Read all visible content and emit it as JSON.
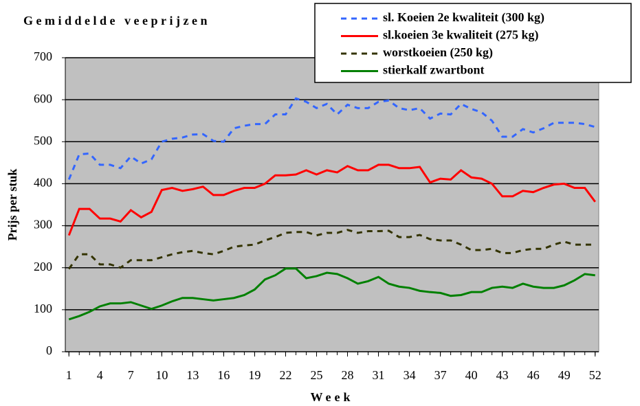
{
  "chart_data": {
    "type": "line",
    "title": "Gemiddelde veeprijzen",
    "x_label": "Week",
    "y_label": "Prijs per stuk",
    "x": [
      1,
      2,
      3,
      4,
      5,
      6,
      7,
      8,
      9,
      10,
      11,
      12,
      13,
      14,
      15,
      16,
      17,
      18,
      19,
      20,
      21,
      22,
      23,
      24,
      25,
      26,
      27,
      28,
      29,
      30,
      31,
      32,
      33,
      34,
      35,
      36,
      37,
      38,
      39,
      40,
      41,
      42,
      43,
      44,
      45,
      46,
      47,
      48,
      49,
      50,
      51,
      52
    ],
    "xlim": [
      0.65,
      52.35
    ],
    "xticks": [
      1,
      4,
      7,
      10,
      13,
      16,
      19,
      22,
      25,
      28,
      31,
      34,
      37,
      40,
      43,
      46,
      49,
      52
    ],
    "ylim": [
      0,
      700
    ],
    "yticks": [
      0,
      100,
      200,
      300,
      400,
      500,
      600,
      700
    ],
    "grid": true,
    "series": [
      {
        "name": "sl. Koeien 2e kwaliteit (300 kg)",
        "color": "#3366ff",
        "dashed": true,
        "values": [
          410,
          470,
          472,
          445,
          445,
          437,
          465,
          448,
          458,
          500,
          507,
          510,
          517,
          518,
          502,
          500,
          532,
          538,
          542,
          542,
          565,
          565,
          603,
          595,
          580,
          590,
          565,
          588,
          580,
          580,
          595,
          598,
          580,
          575,
          580,
          555,
          567,
          565,
          590,
          578,
          570,
          550,
          512,
          512,
          530,
          522,
          532,
          545,
          545,
          545,
          542,
          535
        ]
      },
      {
        "name": "sl.koeien 3e kwaliteit (275 kg)",
        "color": "#ff0000",
        "dashed": false,
        "values": [
          277,
          340,
          340,
          317,
          317,
          310,
          337,
          320,
          333,
          385,
          390,
          383,
          387,
          393,
          373,
          373,
          383,
          390,
          390,
          400,
          420,
          420,
          422,
          432,
          422,
          432,
          427,
          442,
          432,
          432,
          445,
          445,
          437,
          437,
          440,
          403,
          412,
          410,
          432,
          415,
          412,
          400,
          370,
          370,
          383,
          380,
          390,
          398,
          400,
          390,
          390,
          357
        ]
      },
      {
        "name": "worstkoeien (250 kg)",
        "color": "#333300",
        "dashed": true,
        "values": [
          197,
          232,
          232,
          208,
          208,
          200,
          218,
          218,
          218,
          225,
          232,
          237,
          240,
          235,
          232,
          240,
          250,
          253,
          255,
          265,
          273,
          283,
          285,
          285,
          277,
          283,
          283,
          290,
          283,
          287,
          287,
          288,
          273,
          273,
          278,
          268,
          265,
          265,
          255,
          242,
          242,
          245,
          235,
          235,
          242,
          245,
          245,
          255,
          262,
          255,
          255,
          255
        ]
      },
      {
        "name": "stierkalf zwartbont",
        "color": "#008000",
        "dashed": false,
        "values": [
          77,
          85,
          95,
          108,
          115,
          115,
          118,
          110,
          102,
          110,
          120,
          128,
          128,
          125,
          122,
          125,
          128,
          135,
          148,
          172,
          182,
          198,
          198,
          175,
          180,
          188,
          185,
          175,
          162,
          168,
          178,
          162,
          155,
          152,
          145,
          142,
          140,
          133,
          135,
          142,
          142,
          152,
          155,
          152,
          162,
          155,
          152,
          152,
          158,
          170,
          185,
          182
        ]
      }
    ]
  }
}
